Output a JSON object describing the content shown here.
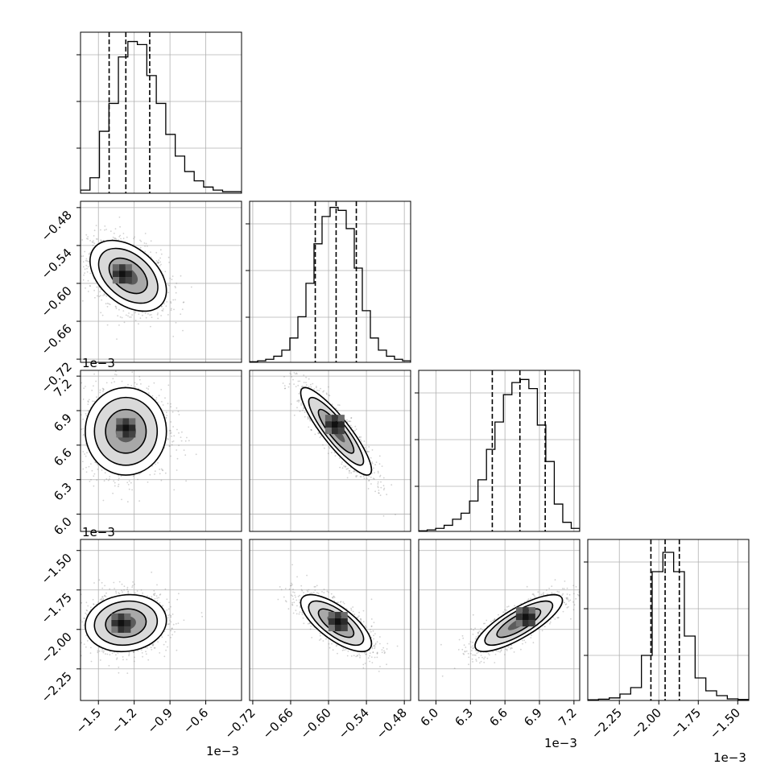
{
  "chart_data": {
    "type": "corner",
    "grid": true,
    "scale_labels": {
      "x0": "1e−3",
      "x2": "1e−3",
      "x3": "1e−3",
      "y1": "1e−3",
      "y2": "1e−3"
    },
    "parameters": [
      {
        "range": [
          -1.65,
          -0.3
        ],
        "ticks": [
          -1.5,
          -1.2,
          -0.9,
          -0.6
        ],
        "tick_labels": [
          "−1.5",
          "−1.2",
          "−0.9",
          "−0.6"
        ]
      },
      {
        "range": [
          -0.725,
          -0.47
        ],
        "ticks": [
          -0.72,
          -0.66,
          -0.6,
          -0.54,
          -0.48
        ],
        "tick_labels": [
          "−0.72",
          "−0.66",
          "−0.60",
          "−0.54",
          "−0.48"
        ]
      },
      {
        "range": [
          5.85,
          7.25
        ],
        "ticks": [
          6.0,
          6.3,
          6.6,
          6.9,
          7.2
        ],
        "tick_labels": [
          "6.0",
          "6.3",
          "6.6",
          "6.9",
          "7.2"
        ]
      },
      {
        "range": [
          -2.45,
          -1.43
        ],
        "ticks": [
          -2.25,
          -2.0,
          -1.75,
          -1.5
        ],
        "tick_labels": [
          "−2.25",
          "−2.00",
          "−1.75",
          "−1.50"
        ]
      }
    ],
    "histograms": [
      {
        "counts": [
          1,
          5,
          20,
          29,
          44,
          49,
          48,
          38,
          29,
          19,
          12,
          7,
          4,
          2,
          1,
          0.5,
          0.5
        ],
        "ymax": 52,
        "quantiles": [
          -1.41,
          -1.27,
          -1.07
        ]
      },
      {
        "counts": [
          0.2,
          0.5,
          1,
          2,
          4,
          8,
          15,
          26,
          39,
          48,
          51,
          50,
          44,
          31,
          17,
          8,
          4,
          2,
          1,
          0.5
        ],
        "ymax": 53,
        "quantiles": [
          -0.621,
          -0.588,
          -0.556
        ]
      },
      {
        "counts": [
          0.2,
          0.5,
          1,
          2,
          4,
          6,
          10,
          17,
          27,
          36,
          45,
          49,
          50,
          47,
          35,
          23,
          9,
          3,
          1
        ],
        "ymax": 53,
        "quantiles": [
          6.49,
          6.73,
          6.95
        ]
      },
      {
        "counts": [
          0.2,
          0.4,
          0.8,
          2,
          4,
          14,
          40,
          46,
          40,
          20,
          7,
          3,
          1.5,
          0.5,
          0.3
        ],
        "ymax": 50,
        "quantiles": [
          -2.05,
          -1.96,
          -1.87
        ]
      }
    ],
    "scatter_2d": [
      {
        "row": 1,
        "col": 0,
        "cx": -1.25,
        "cy": -0.588,
        "sx": 0.16,
        "sy": 0.028,
        "rho": -0.42,
        "mode": [
          -1.3,
          -0.585
        ]
      },
      {
        "row": 2,
        "col": 0,
        "cx": -1.27,
        "cy": 6.72,
        "sx": 0.17,
        "sy": 0.19,
        "rho": 0.0,
        "mode": [
          -1.27,
          6.75
        ]
      },
      {
        "row": 2,
        "col": 1,
        "cx": -0.588,
        "cy": 6.72,
        "sx": 0.028,
        "sy": 0.19,
        "rho": -0.88,
        "mode": [
          -0.59,
          6.78
        ]
      },
      {
        "row": 3,
        "col": 0,
        "cx": -1.27,
        "cy": -1.96,
        "sx": 0.17,
        "sy": 0.09,
        "rho": 0.1,
        "mode": [
          -1.31,
          -1.96
        ]
      },
      {
        "row": 3,
        "col": 1,
        "cx": -0.588,
        "cy": -1.96,
        "sx": 0.028,
        "sy": 0.09,
        "rho": -0.72,
        "mode": [
          -0.585,
          -1.95
        ]
      },
      {
        "row": 3,
        "col": 2,
        "cx": 6.72,
        "cy": -1.96,
        "sx": 0.19,
        "sy": 0.09,
        "rho": 0.8,
        "mode": [
          6.78,
          -1.92
        ]
      }
    ]
  }
}
